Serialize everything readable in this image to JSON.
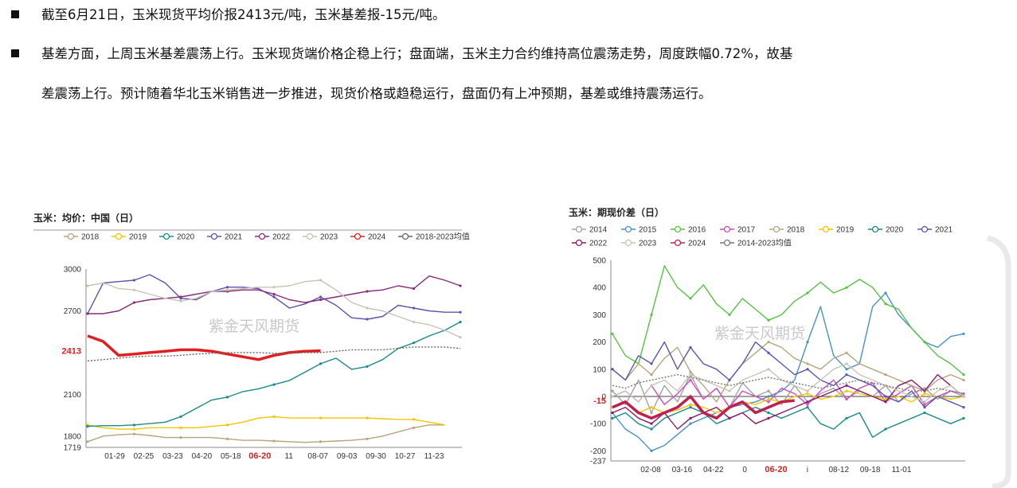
{
  "text": {
    "p1": "截至6月21日，玉米现货平均价报2413元/吨，玉米基差报-15元/吨。",
    "p2_line1": "基差方面，上周玉米基差震荡上行。玉米现货端价格企稳上行；盘面端，玉米主力合约维持高位震荡走势，周度跌幅0.72%，故基",
    "p2_line2": "差震荡上行。预计随着华北玉米销售进一步推进，现货价格或趋稳运行，盘面仍有上冲预期，基差或维持震荡运行。"
  },
  "chart_data": [
    {
      "type": "line",
      "title": "玉米：均价：中国（日）",
      "watermark": "紫金天风期货",
      "ylim": [
        1719,
        3000
      ],
      "yticks": [
        "3000",
        "2700",
        "2100",
        "1800",
        "1719"
      ],
      "xticks": [
        "01-29",
        "02-25",
        "03-23",
        "04-20",
        "05-18",
        "06-20",
        "11",
        "08-07",
        "09-03",
        "09-30",
        "10-27",
        "11-23"
      ],
      "highlight_x": "06-20",
      "highlight_value": "2413",
      "series": [
        {
          "name": "2018",
          "color": "#b7a47d",
          "values": [
            1760,
            1800,
            1810,
            1815,
            1805,
            1790,
            1790,
            1790,
            1790,
            1780,
            1770,
            1770,
            1765,
            1760,
            1755,
            1760,
            1765,
            1770,
            1780,
            1800,
            1830,
            1860,
            1880,
            1880
          ]
        },
        {
          "name": "2019",
          "color": "#f2c500",
          "values": [
            1880,
            1860,
            1850,
            1850,
            1860,
            1860,
            1860,
            1860,
            1870,
            1880,
            1900,
            1930,
            1940,
            1930,
            1930,
            1930,
            1930,
            1930,
            1930,
            1925,
            1920,
            1920,
            1900,
            1880
          ]
        },
        {
          "name": "2020",
          "color": "#1a8a8a",
          "values": [
            1870,
            1875,
            1875,
            1880,
            1890,
            1900,
            1940,
            2000,
            2060,
            2080,
            2120,
            2140,
            2170,
            2200,
            2260,
            2320,
            2360,
            2280,
            2300,
            2350,
            2430,
            2470,
            2520,
            2560,
            2620
          ]
        },
        {
          "name": "2021",
          "color": "#5a55b0",
          "values": [
            2680,
            2900,
            2910,
            2920,
            2960,
            2900,
            2790,
            2780,
            2840,
            2870,
            2870,
            2860,
            2800,
            2720,
            2750,
            2800,
            2740,
            2650,
            2640,
            2660,
            2740,
            2720,
            2700,
            2690,
            2690
          ]
        },
        {
          "name": "2022",
          "color": "#8a2a7a",
          "values": [
            2680,
            2680,
            2700,
            2760,
            2780,
            2790,
            2800,
            2820,
            2840,
            2840,
            2850,
            2850,
            2820,
            2780,
            2760,
            2780,
            2800,
            2820,
            2840,
            2850,
            2880,
            2860,
            2950,
            2920,
            2880
          ]
        },
        {
          "name": "2023",
          "color": "#c8c4b6",
          "values": [
            2880,
            2900,
            2860,
            2850,
            2820,
            2790,
            2770,
            2790,
            2840,
            2850,
            2860,
            2870,
            2870,
            2880,
            2910,
            2920,
            2850,
            2760,
            2720,
            2700,
            2660,
            2620,
            2600,
            2560,
            2510
          ]
        },
        {
          "name": "2024",
          "color": "#e02020",
          "values": [
            2520,
            2480,
            2380,
            2390,
            2400,
            2410,
            2420,
            2420,
            2410,
            2390,
            2370,
            2350,
            2380,
            2400,
            2410,
            2413
          ]
        },
        {
          "name": "2018-2023均值",
          "color": "#666666",
          "values": [
            2340,
            2350,
            2360,
            2370,
            2375,
            2375,
            2380,
            2390,
            2395,
            2400,
            2400,
            2400,
            2395,
            2395,
            2400,
            2400,
            2410,
            2420,
            2420,
            2420,
            2430,
            2440,
            2440,
            2440,
            2430
          ]
        }
      ]
    },
    {
      "type": "line",
      "title": "玉米：期现价差（日）",
      "watermark": "紫金天风期货",
      "ylim": [
        -237,
        500
      ],
      "yticks": [
        "500",
        "400",
        "300",
        "200",
        "100",
        "0",
        "-100",
        "-200",
        "-237"
      ],
      "xticks": [
        "02-08",
        "03-16",
        "04-22",
        "0",
        "06-20",
        "i",
        "08-12",
        "09-18",
        "11-01"
      ],
      "highlight_x": "06-20",
      "highlight_value": "-15",
      "series": [
        {
          "name": "2014",
          "color": "#a3a3a3",
          "values": [
            20,
            -30,
            60,
            -60,
            40,
            -20,
            80,
            -10,
            30,
            -40,
            50,
            0,
            20,
            -30,
            40,
            -20,
            10,
            30,
            -10,
            20,
            0,
            40,
            -20,
            10,
            30,
            -10,
            20,
            0
          ]
        },
        {
          "name": "2015",
          "color": "#4a90c8",
          "values": [
            -60,
            -120,
            -150,
            -200,
            -180,
            -140,
            -100,
            -80,
            -60,
            -40,
            -30,
            -20,
            0,
            20,
            60,
            200,
            330,
            150,
            100,
            120,
            330,
            380,
            300,
            250,
            200,
            180,
            220,
            230
          ]
        },
        {
          "name": "2016",
          "color": "#55c440",
          "values": [
            230,
            150,
            120,
            300,
            480,
            400,
            360,
            410,
            340,
            300,
            360,
            320,
            280,
            300,
            350,
            380,
            420,
            380,
            400,
            430,
            400,
            340,
            320,
            250,
            200,
            150,
            120,
            80
          ]
        },
        {
          "name": "2017",
          "color": "#d04cc0",
          "values": [
            0,
            20,
            -20,
            40,
            -30,
            10,
            60,
            -10,
            30,
            -40,
            20,
            0,
            -20,
            30,
            10,
            -30,
            20,
            60,
            -10,
            30,
            50,
            -20,
            10,
            40,
            -30,
            0,
            20,
            10
          ]
        },
        {
          "name": "2018",
          "color": "#b7a47d",
          "values": [
            100,
            60,
            120,
            80,
            140,
            180,
            90,
            40,
            -20,
            60,
            120,
            160,
            200,
            180,
            140,
            120,
            100,
            140,
            160,
            120,
            100,
            80,
            60,
            40,
            20,
            60,
            80,
            60
          ]
        },
        {
          "name": "2019",
          "color": "#f2c500",
          "values": [
            -40,
            -20,
            -60,
            -40,
            -60,
            -50,
            -30,
            -40,
            -60,
            -40,
            -20,
            -30,
            -10,
            -20,
            0,
            10,
            -10,
            0,
            20,
            10,
            0,
            -10,
            0,
            -20,
            10,
            0,
            -10,
            0
          ]
        },
        {
          "name": "2020",
          "color": "#1a8a8a",
          "values": [
            -80,
            -60,
            -100,
            -120,
            -80,
            -60,
            -40,
            -60,
            -100,
            -80,
            -60,
            -40,
            -60,
            -80,
            -60,
            -40,
            -100,
            -120,
            -80,
            -60,
            -150,
            -120,
            -100,
            -80,
            -60,
            -80,
            -100,
            -80
          ]
        },
        {
          "name": "2021",
          "color": "#5a55b0",
          "values": [
            100,
            60,
            150,
            120,
            200,
            100,
            180,
            120,
            100,
            60,
            120,
            200,
            160,
            120,
            80,
            100,
            60,
            40,
            80,
            60,
            40,
            0,
            -20,
            20,
            -40,
            0,
            -20,
            -40
          ]
        },
        {
          "name": "2022",
          "color": "#8a1a6a",
          "values": [
            -60,
            -40,
            -80,
            -100,
            -60,
            -120,
            -80,
            -60,
            -40,
            -80,
            -60,
            -100,
            -80,
            -60,
            -40,
            -20,
            0,
            20,
            40,
            20,
            0,
            -20,
            40,
            60,
            20,
            80,
            40,
            0
          ]
        },
        {
          "name": "2023",
          "color": "#c8c4b6",
          "values": [
            0,
            20,
            -20,
            40,
            60,
            20,
            80,
            60,
            40,
            20,
            60,
            80,
            100,
            60,
            40,
            20,
            60,
            100,
            120,
            80,
            60,
            40,
            20,
            0,
            -20,
            20,
            40,
            0
          ]
        },
        {
          "name": "2024",
          "color": "#c02050",
          "values": [
            -40,
            -20,
            -60,
            -80,
            -60,
            -40,
            0,
            -60,
            -80,
            -40,
            -20,
            -60,
            -40,
            -20,
            -15
          ]
        },
        {
          "name": "2014-2023均值",
          "color": "#777777",
          "values": [
            40,
            30,
            50,
            60,
            70,
            80,
            70,
            60,
            50,
            40,
            50,
            60,
            70,
            60,
            50,
            40,
            30,
            40,
            50,
            60,
            50,
            40,
            30,
            20,
            20,
            30,
            20,
            10
          ]
        }
      ]
    }
  ]
}
